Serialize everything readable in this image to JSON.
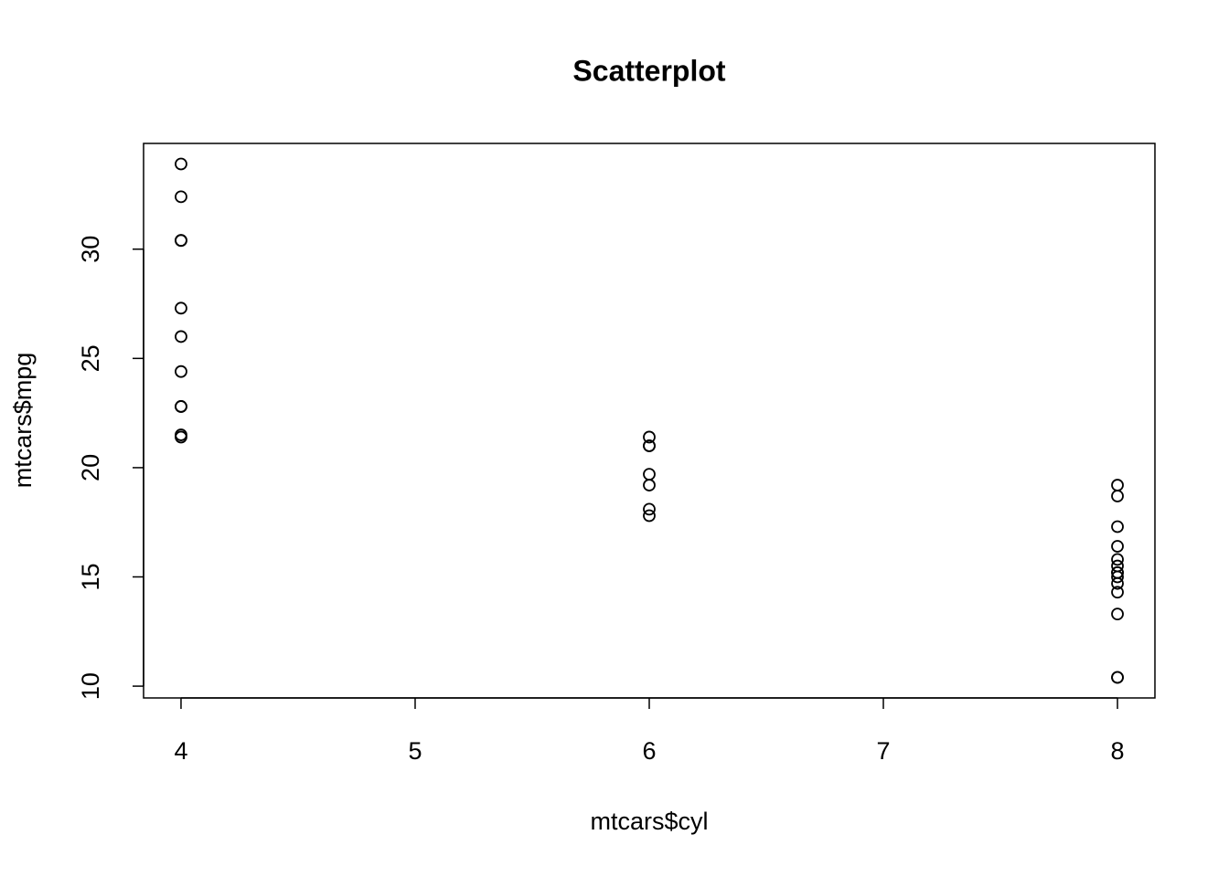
{
  "chart_data": {
    "type": "scatter",
    "title": "Scatterplot",
    "x_label": "mtcars$cyl",
    "y_label": "mtcars$mpg",
    "x": [
      6,
      6,
      4,
      6,
      8,
      6,
      8,
      4,
      4,
      6,
      6,
      8,
      8,
      8,
      8,
      8,
      8,
      4,
      4,
      4,
      4,
      8,
      8,
      8,
      8,
      4,
      4,
      4,
      8,
      6,
      8,
      4
    ],
    "y": [
      21.0,
      21.0,
      22.8,
      21.4,
      18.7,
      18.1,
      14.3,
      24.4,
      22.8,
      19.2,
      17.8,
      16.4,
      17.3,
      15.2,
      10.4,
      10.4,
      14.7,
      32.4,
      30.4,
      33.9,
      21.5,
      15.5,
      15.2,
      13.3,
      19.2,
      27.3,
      26.0,
      30.4,
      15.8,
      19.7,
      15.0,
      21.4
    ],
    "color": "#000000",
    "xlim": [
      3.84,
      8.16
    ],
    "xticks": [
      4,
      5,
      6,
      7,
      8
    ],
    "ylim": [
      9.46,
      34.84
    ],
    "yticks": [
      10,
      15,
      20,
      25,
      30
    ]
  }
}
